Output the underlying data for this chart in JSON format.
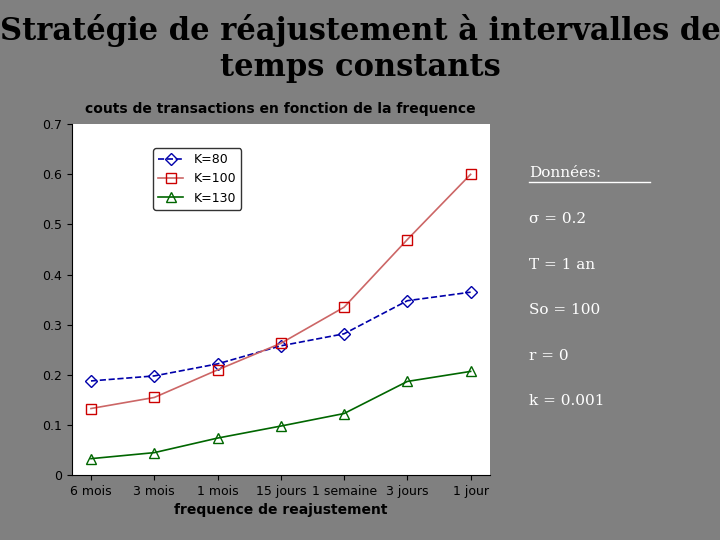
{
  "title": "Stratégie de réajustement à intervalles de\ntemps constants",
  "chart_title": "couts de transactions en fonction de la frequence",
  "xlabel": "frequence de reajustement",
  "x_labels": [
    "6 mois",
    "3 mois",
    "1 mois",
    "15 jours",
    "1 semaine",
    "3 jours",
    "1 jour"
  ],
  "ylim": [
    0,
    0.7
  ],
  "yticks": [
    0,
    0.1,
    0.2,
    0.3,
    0.4,
    0.5,
    0.6,
    0.7
  ],
  "series": [
    {
      "label": "K=80",
      "color": "#0000aa",
      "linestyle": "--",
      "marker": "D",
      "markersize": 6,
      "markerfacecolor": "none",
      "markeredgecolor": "#0000aa",
      "values": [
        0.188,
        0.198,
        0.222,
        0.258,
        0.282,
        0.348,
        0.365
      ]
    },
    {
      "label": "K=100",
      "color": "#cc6666",
      "linestyle": "-",
      "marker": "s",
      "markersize": 7,
      "markerfacecolor": "none",
      "markeredgecolor": "#cc0000",
      "values": [
        0.133,
        0.155,
        0.21,
        0.263,
        0.335,
        0.47,
        0.6
      ]
    },
    {
      "label": "K=130",
      "color": "#006600",
      "linestyle": "-",
      "marker": "^",
      "markersize": 7,
      "markerfacecolor": "none",
      "markeredgecolor": "#006600",
      "values": [
        0.033,
        0.045,
        0.074,
        0.098,
        0.123,
        0.187,
        0.207
      ]
    }
  ],
  "donnees_lines": [
    "Données:",
    "σ = 0.2",
    "T = 1 an",
    "So = 100",
    "r = 0",
    "k = 0.001"
  ],
  "bg_color": "#808080",
  "chart_bg": "#ffffff",
  "right_panel_color": "#606060",
  "right_text_color": "#ffffff"
}
